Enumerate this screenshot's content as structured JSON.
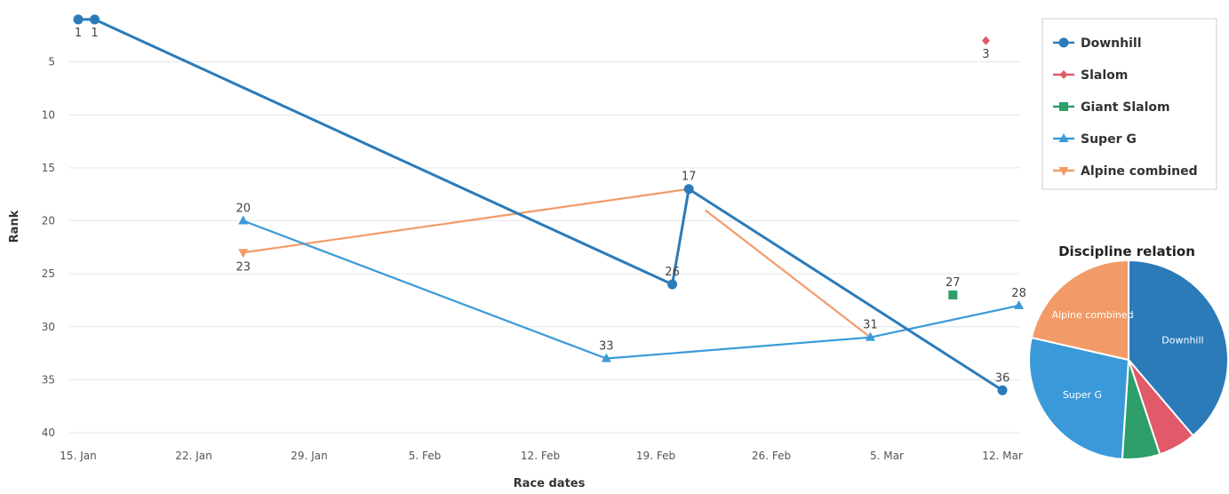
{
  "chart_data": [
    {
      "type": "line",
      "xlabel": "Race dates",
      "ylabel": "Rank",
      "x_ticks": [
        "15. Jan",
        "22. Jan",
        "29. Jan",
        "5. Feb",
        "12. Feb",
        "19. Feb",
        "26. Feb",
        "5. Mar",
        "12. Mar"
      ],
      "y_ticks": [
        5,
        10,
        15,
        20,
        25,
        30,
        35,
        40
      ],
      "ylim": [
        0,
        40
      ],
      "y_reversed": true,
      "grid": "horizontal",
      "legend_position": "top-right",
      "series": [
        {
          "name": "Downhill",
          "color": "#2b7bb9",
          "marker": "circle",
          "points": [
            {
              "x": "2015-01-15",
              "y": 1,
              "label": "1"
            },
            {
              "x": "2015-01-16",
              "y": 1,
              "label": "1"
            },
            {
              "x": "2015-02-20",
              "y": 26,
              "label": "26"
            },
            {
              "x": "2015-02-21",
              "y": 17,
              "label": "17"
            },
            {
              "x": "2015-03-12",
              "y": 36,
              "label": "36"
            }
          ]
        },
        {
          "name": "Slalom",
          "color": "#e05a6a",
          "marker": "diamond",
          "points": [
            {
              "x": "2015-03-11",
              "y": 3,
              "label": "3"
            }
          ]
        },
        {
          "name": "Giant Slalom",
          "color": "#2e9e6b",
          "marker": "square",
          "points": [
            {
              "x": "2015-03-09",
              "y": 27,
              "label": "27"
            }
          ]
        },
        {
          "name": "Super G",
          "color": "#3a9ad9",
          "marker": "triangle",
          "points": [
            {
              "x": "2015-01-25",
              "y": 20,
              "label": "20"
            },
            {
              "x": "2015-02-16",
              "y": 33,
              "label": "33"
            },
            {
              "x": "2015-03-04",
              "y": 31,
              "label": "31"
            },
            {
              "x": "2015-03-13",
              "y": 28,
              "label": "28"
            }
          ]
        },
        {
          "name": "Alpine combined",
          "color": "#f29b68",
          "marker": "triangle-down",
          "points": [
            {
              "x": "2015-01-25",
              "y": 23,
              "label": "23"
            },
            {
              "x": "2015-02-21",
              "y": 17,
              "label": ""
            },
            {
              "x": null,
              "y": null,
              "label": ""
            },
            {
              "x": "2015-02-22",
              "y": 19,
              "label": ""
            },
            {
              "x": "2015-03-04",
              "y": 31,
              "label": ""
            }
          ]
        }
      ]
    },
    {
      "type": "pie",
      "title": "Discipline relation",
      "slices": [
        {
          "name": "Downhill",
          "label": "Downhill",
          "value": 38,
          "color": "#2b7bb9"
        },
        {
          "name": "Slalom",
          "label": "",
          "value": 6,
          "color": "#e05a6a"
        },
        {
          "name": "Giant Slalom",
          "label": "",
          "value": 6,
          "color": "#2e9e6b"
        },
        {
          "name": "Super G",
          "label": "Super G",
          "value": 27,
          "color": "#3a9ad9"
        },
        {
          "name": "Alpine combined",
          "label": "Alpine combined",
          "value": 21,
          "color": "#f29b68"
        }
      ]
    }
  ]
}
